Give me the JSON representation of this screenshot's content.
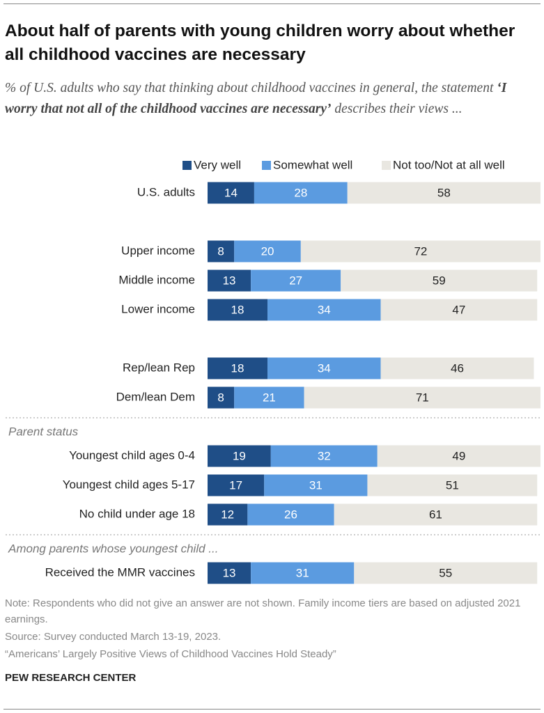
{
  "chart_data": {
    "type": "bar",
    "orientation": "horizontal",
    "stacked": true,
    "title": "About half of parents with young children worry about whether all childhood vaccines are necessary",
    "subtitle": [
      "% of U.S. adults who say that thinking about childhood vaccines in general, the statement ",
      "‘I worry that not all of the childhood vaccines are necessary’",
      " describes their views ..."
    ],
    "groups": [
      {
        "categories": [
          "U.S. adults"
        ]
      },
      {
        "categories": [
          "Upper income",
          "Middle income",
          "Lower income"
        ]
      },
      {
        "categories": [
          "Rep/lean Rep",
          "Dem/lean Dem"
        ]
      },
      {
        "label": "Parent status",
        "categories": [
          "Youngest child ages 0-4",
          "Youngest child ages 5-17",
          "No child under age 18"
        ]
      },
      {
        "label": "Among parents whose youngest child ...",
        "categories": [
          "Received the MMR vaccines"
        ]
      }
    ],
    "series": [
      {
        "name": "Very well",
        "color": "#1f4e87",
        "text_color": "#ffffff",
        "values": [
          14,
          8,
          13,
          18,
          18,
          8,
          19,
          17,
          12,
          13
        ]
      },
      {
        "name": "Somewhat well",
        "color": "#5b9be0",
        "text_color": "#ffffff",
        "values": [
          28,
          20,
          27,
          34,
          34,
          21,
          32,
          31,
          26,
          31
        ]
      },
      {
        "name": "Not too/Not at all well",
        "color": "#e9e7e1",
        "text_color": "#222222",
        "values": [
          58,
          72,
          59,
          47,
          46,
          71,
          49,
          51,
          61,
          55
        ]
      }
    ],
    "xlim": [
      0,
      100
    ],
    "notes": [
      "Note: Respondents who did not give an answer are not shown. Family income tiers are based on adjusted 2021 earnings.",
      "Source: Survey conducted March 13-19, 2023.",
      "“Americans’ Largely Positive Views of Childhood Vaccines Hold Steady”"
    ],
    "credit": "PEW RESEARCH CENTER"
  }
}
